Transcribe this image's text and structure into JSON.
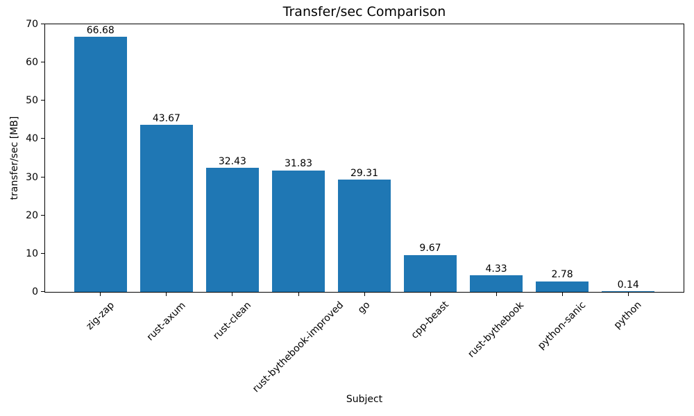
{
  "chart_data": {
    "type": "bar",
    "title": "Transfer/sec Comparison",
    "xlabel": "Subject",
    "ylabel": "transfer/sec [MB]",
    "categories": [
      "zig-zap",
      "rust-axum",
      "rust-clean",
      "rust-bythebook-improved",
      "go",
      "cpp-beast",
      "rust-bythebook",
      "python-sanic",
      "python"
    ],
    "values": [
      66.68,
      43.67,
      32.43,
      31.83,
      29.31,
      9.67,
      4.33,
      2.78,
      0.14
    ],
    "bar_labels": [
      "66.68",
      "43.67",
      "32.43",
      "31.83",
      "29.31",
      "9.67",
      "4.33",
      "2.78",
      "0.14"
    ],
    "bar_color": "#1f77b4",
    "ylim": [
      0,
      70
    ],
    "yticks": [
      0,
      10,
      20,
      30,
      40,
      50,
      60,
      70
    ],
    "xtick_rotation_deg": 45,
    "grid": false,
    "legend_position": "none",
    "frame_color": "#000000",
    "background_color": "#ffffff"
  }
}
